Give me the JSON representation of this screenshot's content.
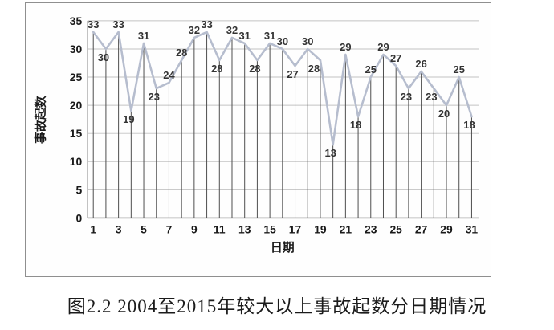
{
  "figure": {
    "caption": "图2.2 2004至2015年较大以上事故起数分日期情况"
  },
  "chart_data": {
    "type": "line",
    "title": "",
    "xlabel": "日期",
    "ylabel": "事故起数",
    "x": [
      1,
      2,
      3,
      4,
      5,
      6,
      7,
      8,
      9,
      10,
      11,
      12,
      13,
      14,
      15,
      16,
      17,
      18,
      19,
      20,
      21,
      22,
      23,
      24,
      25,
      26,
      27,
      28,
      29,
      30,
      31
    ],
    "values": [
      33,
      30,
      33,
      19,
      31,
      23,
      24,
      28,
      32,
      33,
      28,
      32,
      31,
      28,
      31,
      30,
      27,
      30,
      28,
      13,
      29,
      18,
      25,
      29,
      27,
      23,
      26,
      23,
      20,
      25,
      18
    ],
    "xticks": [
      1,
      3,
      5,
      7,
      9,
      11,
      13,
      15,
      17,
      19,
      21,
      23,
      25,
      27,
      29,
      31
    ],
    "ylim": [
      0,
      35
    ],
    "ytick_step": 5,
    "grid": "horizontal",
    "drop_lines": true,
    "legend": "none",
    "colors": {
      "series": "#b6bdce",
      "drop_line": "#4d4d4d",
      "gridline": "#c3c3c3",
      "axis": "#666666",
      "data_label": "#333333",
      "tick_label": "#1a1a1a"
    }
  }
}
